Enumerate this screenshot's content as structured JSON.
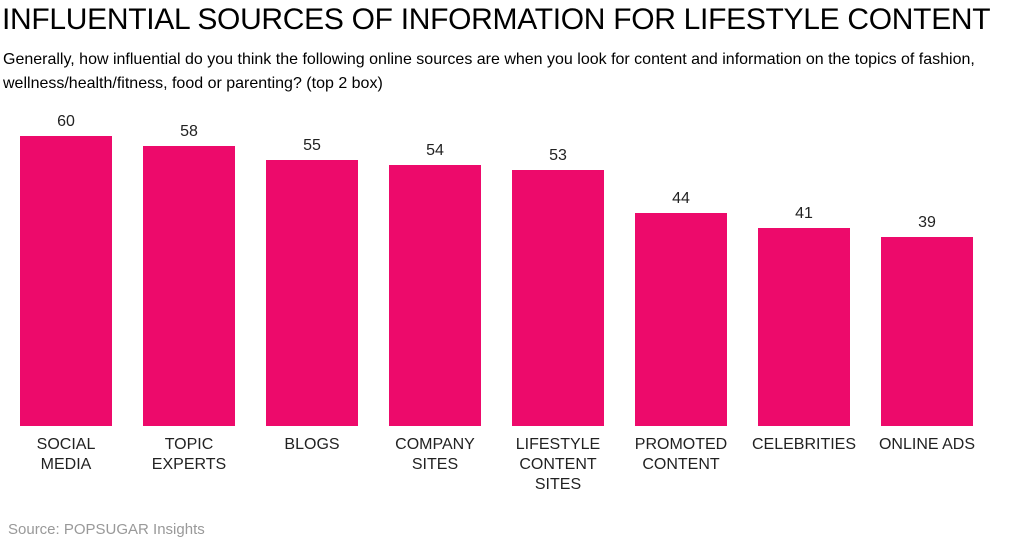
{
  "chart_data": {
    "type": "bar",
    "title": "INFLUENTIAL SOURCES OF INFORMATION FOR LIFESTYLE CONTENT",
    "subtitle": "Generally, how influential do you think the following online sources are when you look for content and information on the topics of fashion, wellness/health/fitness, food or parenting? (top 2 box)",
    "categories": [
      "SOCIAL MEDIA",
      "TOPIC EXPERTS",
      "BLOGS",
      "COMPANY SITES",
      "LIFESTYLE CONTENT SITES",
      "PROMOTED CONTENT",
      "CELEBRITIES",
      "ONLINE ADS"
    ],
    "values": [
      60,
      58,
      55,
      54,
      53,
      44,
      41,
      39
    ],
    "xlabel": "",
    "ylabel": "",
    "ylim": [
      0,
      60
    ],
    "grid": false,
    "legend": false,
    "data_labels": "above bars",
    "bar_color": "#ED0A6B",
    "text_color": "#222222"
  },
  "footer": {
    "source": "Source: POPSUGAR Insights"
  }
}
